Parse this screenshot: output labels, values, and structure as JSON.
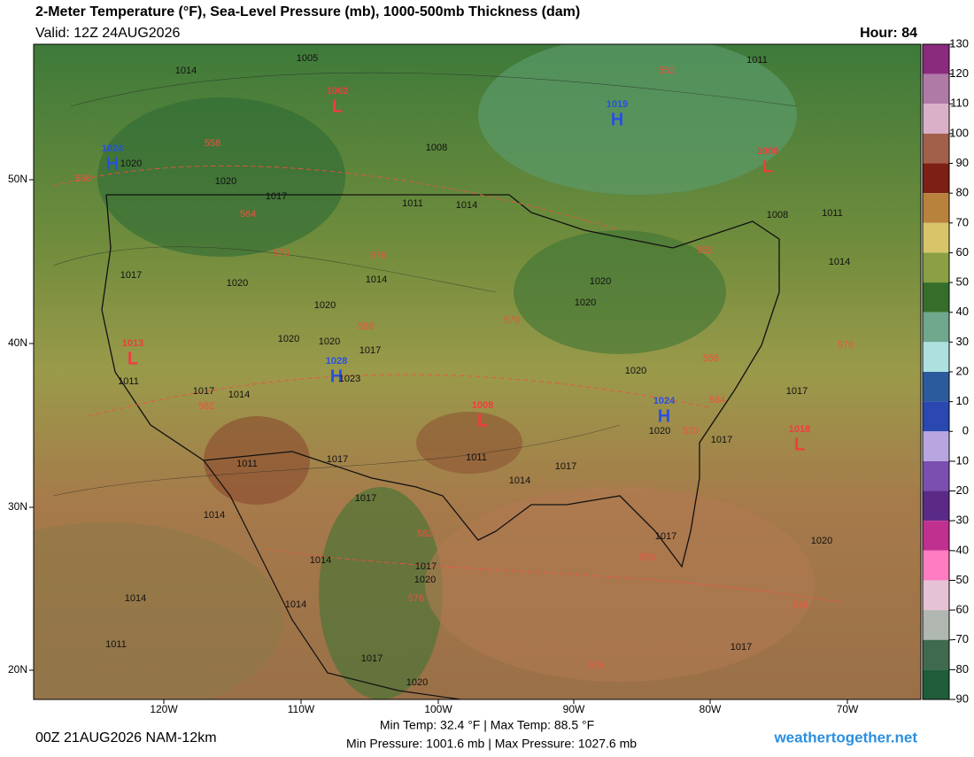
{
  "header": {
    "title": "2-Meter Temperature (°F), Sea-Level Pressure (mb), 1000-500mb Thickness (dam)",
    "valid": "Valid: 12Z 24AUG2026",
    "hour": "Hour: 84"
  },
  "colorbar": {
    "ticks": [
      130,
      120,
      110,
      100,
      90,
      80,
      70,
      60,
      50,
      40,
      30,
      20,
      10,
      0,
      -10,
      -20,
      -30,
      -40,
      -50,
      -60,
      -70,
      -80,
      -90
    ],
    "colors": [
      "#8a2b7d",
      "#b07aa6",
      "#d9b0c8",
      "#a2604a",
      "#7c1f14",
      "#b8823c",
      "#d8c56a",
      "#8aa043",
      "#356e2a",
      "#6fa88d",
      "#aee0e0",
      "#2b5b9c",
      "#2a48b0",
      "#b9a6e0",
      "#7a4fb0",
      "#5a2a86",
      "#c0308f",
      "#ff7cc0",
      "#e6c2d6",
      "#b0b6b0",
      "#3f6a4f",
      "#1f5c3a"
    ]
  },
  "axes": {
    "lon": [
      "120W",
      "110W",
      "100W",
      "90W",
      "80W",
      "70W"
    ],
    "lat": [
      "50N",
      "40N",
      "30N",
      "20N"
    ]
  },
  "centers": [
    {
      "letter": "H",
      "value": 1024
    },
    {
      "letter": "H",
      "value": 1019
    },
    {
      "letter": "H",
      "value": 1028
    },
    {
      "letter": "H",
      "value": 1024
    },
    {
      "letter": "L",
      "value": 1002
    },
    {
      "letter": "L",
      "value": 1013
    },
    {
      "letter": "L",
      "value": 1008
    },
    {
      "letter": "L",
      "value": 1008
    },
    {
      "letter": "L",
      "value": 1018
    }
  ],
  "isobars": [
    1005,
    1014,
    1011,
    1020,
    1020,
    1017,
    1011,
    1014,
    1008,
    1008,
    1011,
    1014,
    1017,
    1020,
    1014,
    1020,
    1020,
    1020,
    1020,
    1020,
    1017,
    1023,
    1011,
    1017,
    1014,
    1020,
    1017,
    1020,
    1017,
    1011,
    1017,
    1011,
    1017,
    1014,
    1017,
    1014,
    1017,
    1020,
    1014,
    1017,
    1020,
    1014,
    1014,
    1011,
    1017,
    1020,
    1017
  ],
  "thickness": [
    552,
    558,
    558,
    564,
    570,
    576,
    570,
    552,
    588,
    558,
    570,
    582,
    564,
    570,
    582,
    576,
    576,
    576,
    576
  ],
  "footer": {
    "run": "00Z 21AUG2026 NAM-12km",
    "temps": "Min Temp:  32.4 °F | Max Temp:  88.5 °F",
    "pressures": "Min Pressure: 1001.6 mb | Max Pressure: 1027.6 mb",
    "site": "weathertogether.net"
  }
}
